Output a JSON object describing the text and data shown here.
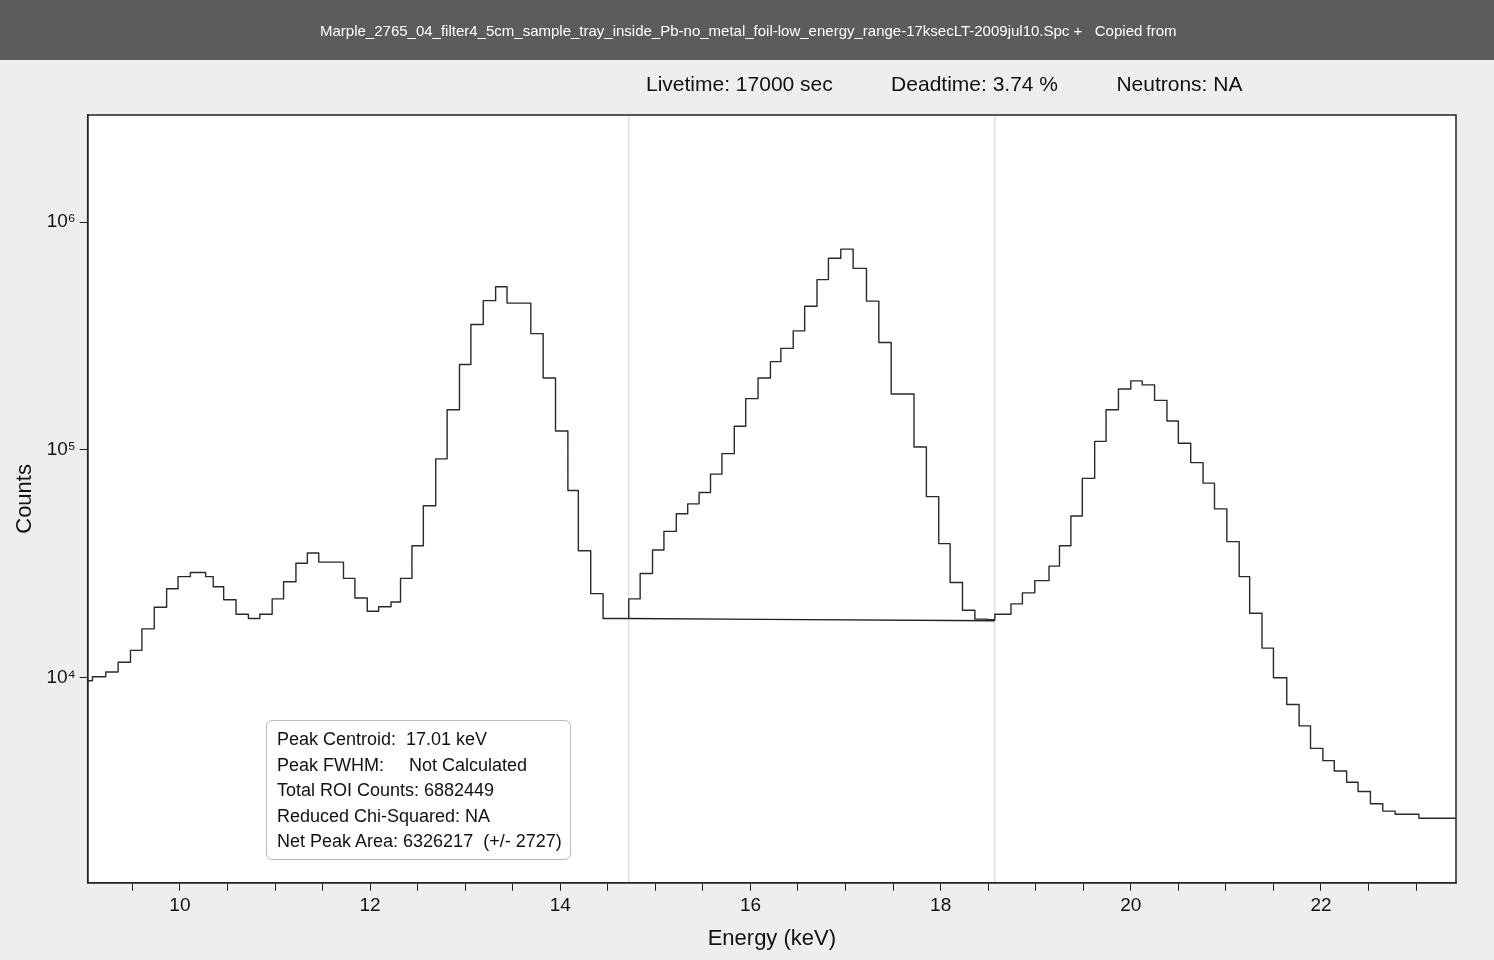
{
  "chart_data": {
    "type": "step",
    "title": "Marple_2765_04_filter4_5cm_sample_tray_inside_Pb-no_metal_foil-low_energy_range-17ksecLT-2009jul10.Spc +   Copied from",
    "subtitle": "Livetime: 17000 sec          Deadtime: 3.74 %          Neutrons: NA",
    "xlabel": "Energy (keV)",
    "ylabel": "Counts",
    "x": [
      9.03,
      9.08,
      9.22,
      9.35,
      9.48,
      9.6,
      9.73,
      9.86,
      9.98,
      10.11,
      10.27,
      10.35,
      10.46,
      10.59,
      10.72,
      10.84,
      10.97,
      11.09,
      11.22,
      11.34,
      11.46,
      11.72,
      11.84,
      11.97,
      12.09,
      12.22,
      12.32,
      12.44,
      12.56,
      12.69,
      12.81,
      12.94,
      13.06,
      13.19,
      13.32,
      13.44,
      13.69,
      13.82,
      13.95,
      14.08,
      14.19,
      14.32,
      14.45,
      14.59,
      14.72,
      14.84,
      14.97,
      15.09,
      15.22,
      15.34,
      15.46,
      15.58,
      15.7,
      15.83,
      15.95,
      16.08,
      16.21,
      16.32,
      16.45,
      16.57,
      16.7,
      16.82,
      16.95,
      17.08,
      17.22,
      17.35,
      17.48,
      17.72,
      17.85,
      17.98,
      18.1,
      18.23,
      18.36,
      18.49,
      18.57,
      18.74,
      18.86,
      18.99,
      19.14,
      19.25,
      19.37,
      19.49,
      19.62,
      19.74,
      19.87,
      20.0,
      20.12,
      20.25,
      20.38,
      20.5,
      20.63,
      20.76,
      20.88,
      21.01,
      21.14,
      21.25,
      21.38,
      21.5,
      21.64,
      21.77,
      21.89,
      22.02,
      22.14,
      22.27,
      22.39,
      22.52,
      22.65,
      22.78,
      23.03,
      23.29,
      23.42
    ],
    "values": [
      9500,
      9700,
      10100,
      10600,
      11700,
      13200,
      16400,
      20400,
      24600,
      27800,
      29000,
      27800,
      25100,
      22000,
      19000,
      18200,
      19000,
      22200,
      26400,
      31800,
      35300,
      32200,
      27300,
      22400,
      19600,
      20500,
      21500,
      27300,
      38000,
      56900,
      91400,
      150000,
      237000,
      355000,
      452000,
      520000,
      441000,
      324000,
      207000,
      121000,
      66400,
      36100,
      23400,
      18200,
      18200,
      22200,
      28700,
      36400,
      43900,
      52500,
      58000,
      65000,
      78300,
      96300,
      127000,
      168000,
      207000,
      244000,
      279000,
      333000,
      427000,
      559000,
      694000,
      761000,
      626000,
      450000,
      296000,
      176000,
      103000,
      62400,
      38800,
      26200,
      19800,
      18100,
      18000,
      19000,
      21100,
      23600,
      26700,
      30900,
      38000,
      51300,
      75000,
      109000,
      150000,
      185000,
      201000,
      193000,
      165000,
      134000,
      107000,
      88000,
      71500,
      55100,
      39600,
      27800,
      19200,
      13500,
      10000,
      7640,
      6150,
      4900,
      4330,
      3900,
      3480,
      3170,
      2800,
      2600,
      2520,
      2420,
      2420
    ],
    "color": "#2a2a2a",
    "series": [
      {
        "type": "line",
        "color": "#222222",
        "x": [
          14.72,
          18.57
        ],
        "values": [
          18200,
          17800
        ]
      }
    ],
    "ref_lines": [
      {
        "axis": "x",
        "value": 14.72,
        "color": "#d0d0d0"
      },
      {
        "axis": "x",
        "value": 18.57,
        "color": "#d0d0d0"
      }
    ],
    "annotations": [
      "Peak Centroid:  17.01 keV",
      "Peak FWHM:     Not Calculated",
      "Total ROI Counts: 6882449",
      "Reduced Chi-Squared: NA",
      "Net Peak Area: 6326217  (+/- 2727)"
    ],
    "log": "y",
    "grid": false,
    "legend": false,
    "xlim": [
      9.03,
      23.42
    ],
    "xticks": [
      {
        "value": 9.5,
        "label": null
      },
      10,
      {
        "value": 10.5,
        "label": null
      },
      {
        "value": 11,
        "label": null
      },
      {
        "value": 11.5,
        "label": null
      },
      12,
      {
        "value": 12.5,
        "label": null
      },
      {
        "value": 13,
        "label": null
      },
      {
        "value": 13.5,
        "label": null
      },
      14,
      {
        "value": 14.5,
        "label": null
      },
      {
        "value": 15,
        "label": null
      },
      {
        "value": 15.5,
        "label": null
      },
      16,
      {
        "value": 16.5,
        "label": null
      },
      {
        "value": 17,
        "label": null
      },
      {
        "value": 17.5,
        "label": null
      },
      18,
      {
        "value": 18.5,
        "label": null
      },
      {
        "value": 19,
        "label": null
      },
      {
        "value": 19.5,
        "label": null
      },
      20,
      {
        "value": 20.5,
        "label": null
      },
      {
        "value": 21,
        "label": null
      },
      {
        "value": 21.5,
        "label": null
      },
      22,
      {
        "value": 22.5,
        "label": null
      },
      {
        "value": 23,
        "label": null
      }
    ],
    "ylim": [
      1260,
      2950000
    ],
    "yticks": [
      {
        "value": 10000,
        "label": "10⁴"
      },
      {
        "value": 100000,
        "label": "10⁵"
      },
      {
        "value": 1000000,
        "label": "10⁶"
      }
    ]
  }
}
